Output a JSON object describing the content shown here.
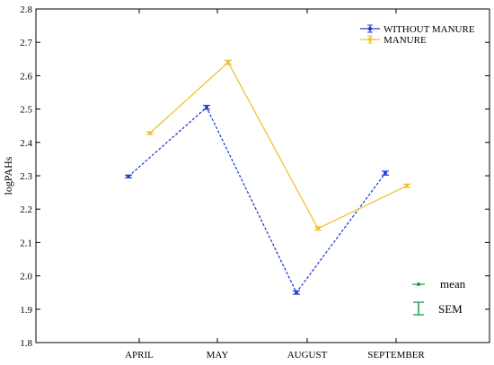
{
  "chart_data": {
    "type": "line",
    "categories": [
      "APRIL",
      "MAY",
      "AUGUST",
      "SEPTEMBER"
    ],
    "ylabel": "logPAHs",
    "xlabel": "",
    "ylim": [
      1.8,
      2.8
    ],
    "yticks": [
      "1.8",
      "1.9",
      "2.0",
      "2.1",
      "2.2",
      "2.3",
      "2.4",
      "2.5",
      "2.6",
      "2.7",
      "2.8"
    ],
    "grid": false,
    "legend_position": "top-right",
    "series": [
      {
        "name": "WITHOUT MANURE",
        "color": "#1f3fd8",
        "line_style": "dashed",
        "values": [
          2.298,
          2.505,
          1.95,
          2.308
        ],
        "sem": [
          0.004,
          0.006,
          0.005,
          0.006
        ]
      },
      {
        "name": "MANURE",
        "color": "#f2c12e",
        "line_style": "solid",
        "values": [
          2.428,
          2.64,
          2.142,
          2.27
        ],
        "sem": [
          0.004,
          0.006,
          0.005,
          0.005
        ]
      }
    ],
    "key": {
      "mean_label": "mean",
      "sem_label": "SEM",
      "color": "#1a9a4a"
    }
  }
}
